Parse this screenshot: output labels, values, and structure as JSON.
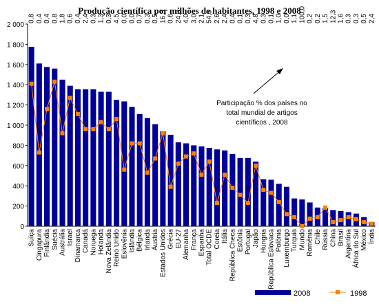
{
  "title": "Produção científica por milhões de habitantes, 1998 e 2008",
  "annotation": [
    "Participação % dos países no",
    "total mundial de artigos",
    "científicos , 2008"
  ],
  "colors": {
    "bar": "#000099",
    "line": "#ff8000",
    "marker": "#ff8000"
  },
  "chart_data": {
    "type": "bar",
    "title": "Produção científica por milhões de habitantes, 1998 e 2008",
    "xlabel": "",
    "ylabel": "",
    "ylim": [
      0,
      2000
    ],
    "yticks": [
      "0",
      "200",
      "400",
      "600",
      "800",
      "1 000",
      "1 200",
      "1 400",
      "1 600",
      "1 800",
      "2 000"
    ],
    "categories": [
      "Suíça",
      "Cingapura",
      "Finlândia",
      "Suécia",
      "Austrália",
      "Israel",
      "Dinamarca",
      "Canadá",
      "Noruega",
      "Holanda",
      "Nova Zelândia",
      "Reino Unido",
      "Eslovênia",
      "Islândia",
      "Bélgica",
      "Irlanda",
      "Áustria",
      "Estados Unidos",
      "Grécia",
      "EU-27",
      "Alemanha",
      "França",
      "Espanha",
      "Total OCDE",
      "Coreia",
      "Itália",
      "República Checa",
      "Estônia",
      "Portugal",
      "Japão",
      "Hungria",
      "República Eslovaca",
      "Polônia",
      "Luxemburgo",
      "Turquia",
      "Mundo",
      "Romênia",
      "Chile",
      "Rússia",
      "China",
      "Brasil",
      "Argentina",
      "África do Sul",
      "México",
      "Índia"
    ],
    "top_labels": [
      "0,8",
      "0,4",
      "0,4",
      "0,8",
      "1,8",
      "0,6",
      "0,4",
      "2,4",
      "0,3",
      "1,3",
      "0,3",
      "4,5",
      "0,0",
      "0,0",
      "0,7",
      "0,3",
      "0,5",
      "16,3",
      "0,6",
      "24,3",
      "4,0",
      "3,0",
      "2,1",
      "54,5",
      "2,6",
      "2,4",
      "0,4",
      "0,1",
      "0,3",
      "4,8",
      "0,3",
      "0,1",
      "1,0",
      "0,0",
      "1,1",
      "100,0",
      "0,2",
      "0,2",
      "1,5",
      "12,3",
      "1,6",
      "0,3",
      "0,3",
      "0,5",
      "2,4"
    ],
    "series": [
      {
        "name": "2008",
        "type": "bar",
        "values": [
          1775,
          1610,
          1575,
          1560,
          1450,
          1390,
          1355,
          1355,
          1355,
          1330,
          1330,
          1250,
          1235,
          1180,
          1110,
          1070,
          1010,
          940,
          905,
          830,
          820,
          800,
          790,
          775,
          760,
          750,
          715,
          675,
          675,
          640,
          465,
          460,
          420,
          390,
          275,
          265,
          235,
          185,
          180,
          160,
          150,
          140,
          125,
          90,
          40
        ]
      },
      {
        "name": "1998",
        "type": "line",
        "values": [
          1410,
          730,
          1160,
          1430,
          920,
          1270,
          1110,
          960,
          960,
          1030,
          960,
          1060,
          560,
          820,
          820,
          530,
          670,
          920,
          390,
          620,
          690,
          720,
          510,
          640,
          230,
          510,
          380,
          310,
          230,
          600,
          360,
          330,
          240,
          120,
          90,
          0,
          75,
          90,
          185,
          40,
          60,
          90,
          70,
          40,
          25
        ]
      }
    ],
    "legend": {
      "position": "bottom-right",
      "entries": [
        "2008",
        "1998"
      ]
    },
    "grid": false
  }
}
